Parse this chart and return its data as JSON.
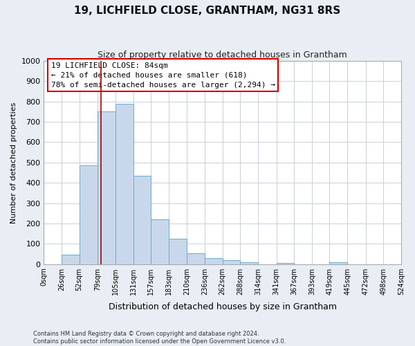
{
  "title": "19, LICHFIELD CLOSE, GRANTHAM, NG31 8RS",
  "subtitle": "Size of property relative to detached houses in Grantham",
  "xlabel": "Distribution of detached houses by size in Grantham",
  "ylabel": "Number of detached properties",
  "bin_edges": [
    0,
    26,
    52,
    79,
    105,
    131,
    157,
    183,
    210,
    236,
    262,
    288,
    314,
    341,
    367,
    393,
    419,
    445,
    472,
    498,
    524
  ],
  "bin_labels": [
    "0sqm",
    "26sqm",
    "52sqm",
    "79sqm",
    "105sqm",
    "131sqm",
    "157sqm",
    "183sqm",
    "210sqm",
    "236sqm",
    "262sqm",
    "288sqm",
    "314sqm",
    "341sqm",
    "367sqm",
    "393sqm",
    "419sqm",
    "445sqm",
    "472sqm",
    "498sqm",
    "524sqm"
  ],
  "bar_heights": [
    0,
    45,
    485,
    750,
    790,
    435,
    220,
    125,
    55,
    30,
    20,
    10,
    0,
    5,
    0,
    0,
    8,
    0,
    0,
    0
  ],
  "bar_color": "#c8d8ea",
  "bar_edge_color": "#6aaad4",
  "vline_x": 84,
  "vline_color": "#aa0000",
  "ylim": [
    0,
    1000
  ],
  "yticks": [
    0,
    100,
    200,
    300,
    400,
    500,
    600,
    700,
    800,
    900,
    1000
  ],
  "annotation_line1": "19 LICHFIELD CLOSE: 84sqm",
  "annotation_line2": "← 21% of detached houses are smaller (618)",
  "annotation_line3": "78% of semi-detached houses are larger (2,294) →",
  "annotation_box_color": "#ffffff",
  "annotation_box_edge_color": "#cc0000",
  "footer_line1": "Contains HM Land Registry data © Crown copyright and database right 2024.",
  "footer_line2": "Contains public sector information licensed under the Open Government Licence v3.0.",
  "grid_color": "#c8d0d8",
  "background_color": "#ffffff",
  "fig_bg_color": "#e8eef4"
}
